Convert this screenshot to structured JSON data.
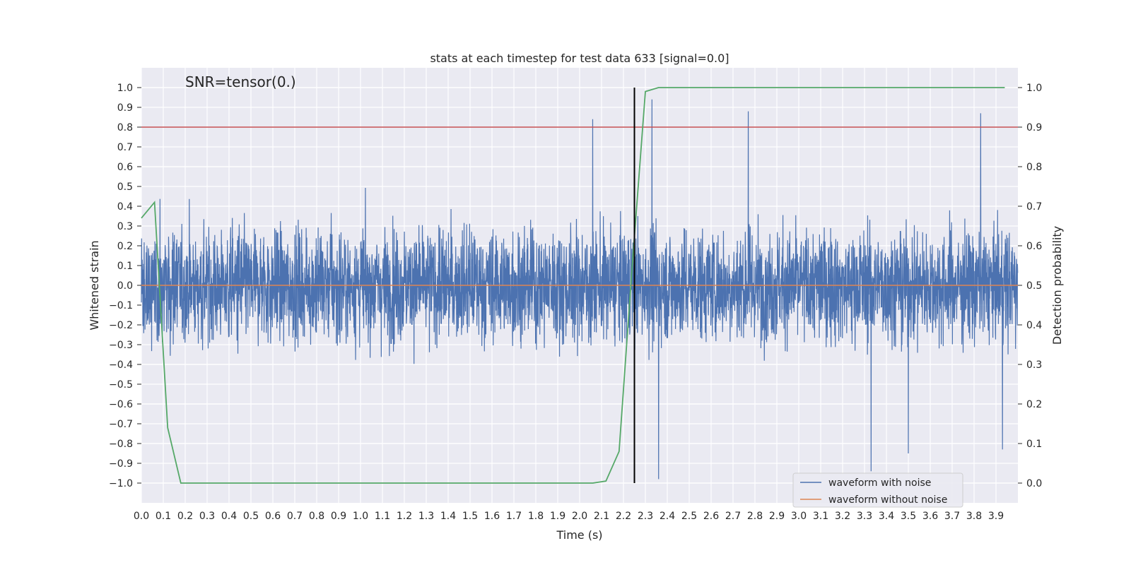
{
  "chart_data": {
    "type": "line",
    "title": "stats at each timestep for test data 633 [signal=0.0]",
    "annotation": "SNR=tensor(0.)",
    "xlabel": "Time (s)",
    "ylabel": "Whitened strain",
    "y2label": "Detection probability",
    "xlim": [
      0.0,
      4.0
    ],
    "ylim": [
      -1.1,
      1.1
    ],
    "y2lim": [
      -0.05,
      1.05
    ],
    "x_ticks": [
      "0.0",
      "0.1",
      "0.2",
      "0.3",
      "0.4",
      "0.5",
      "0.6",
      "0.7",
      "0.8",
      "0.9",
      "1.0",
      "1.1",
      "1.2",
      "1.3",
      "1.4",
      "1.5",
      "1.6",
      "1.7",
      "1.8",
      "1.9",
      "2.0",
      "2.1",
      "2.2",
      "2.3",
      "2.4",
      "2.5",
      "2.6",
      "2.7",
      "2.8",
      "2.9",
      "3.0",
      "3.1",
      "3.2",
      "3.3",
      "3.4",
      "3.5",
      "3.6",
      "3.7",
      "3.8",
      "3.9"
    ],
    "y_ticks": [
      "1.0",
      "0.9",
      "0.8",
      "0.7",
      "0.6",
      "0.5",
      "0.4",
      "0.3",
      "0.2",
      "0.1",
      "0.0",
      "−0.1",
      "−0.2",
      "−0.3",
      "−0.4",
      "−0.5",
      "−0.6",
      "−0.7",
      "−0.8",
      "−0.9",
      "−1.0"
    ],
    "y2_ticks": [
      "1.0",
      "0.9",
      "0.8",
      "0.7",
      "0.6",
      "0.5",
      "0.4",
      "0.3",
      "0.2",
      "0.1",
      "0.0"
    ],
    "grid": true,
    "legend_position": "lower-right",
    "series": [
      {
        "name": "waveform with noise",
        "color": "#4c72b0",
        "axis": "left",
        "noise_std": 0.2,
        "sample_count": 4096,
        "peaks": [
          {
            "x": 2.06,
            "y": 0.84
          },
          {
            "x": 2.33,
            "y": 0.94
          },
          {
            "x": 2.77,
            "y": 0.88
          },
          {
            "x": 3.83,
            "y": 0.87
          },
          {
            "x": 2.36,
            "y": -0.98
          },
          {
            "x": 3.33,
            "y": -0.94
          },
          {
            "x": 3.5,
            "y": -0.85
          },
          {
            "x": 3.93,
            "y": -0.83
          }
        ]
      },
      {
        "name": "waveform without noise",
        "color": "#dd8452",
        "axis": "left",
        "x": [
          0.0,
          4.0
        ],
        "y": [
          0.0,
          0.0
        ]
      },
      {
        "name": "detection probability",
        "color": "#55a868",
        "axis": "right",
        "x": [
          0.0,
          0.06,
          0.12,
          0.18,
          0.24,
          0.3,
          0.6,
          1.0,
          1.5,
          2.0,
          2.06,
          2.12,
          2.18,
          2.24,
          2.3,
          2.36,
          2.42,
          2.6,
          3.0,
          3.5,
          3.94
        ],
        "y": [
          0.67,
          0.71,
          0.14,
          0.0,
          0.0,
          0.0,
          0.0,
          0.0,
          0.0,
          0.0,
          0.0,
          0.005,
          0.08,
          0.55,
          0.99,
          1.0,
          1.0,
          1.0,
          1.0,
          1.0,
          1.0
        ]
      }
    ],
    "hlines": [
      {
        "axis": "right",
        "y": 0.9,
        "color": "#c44e52"
      }
    ],
    "vlines": [
      {
        "x": 2.25,
        "y_from": -1.0,
        "y_to": 1.0,
        "color": "#000000"
      }
    ]
  }
}
